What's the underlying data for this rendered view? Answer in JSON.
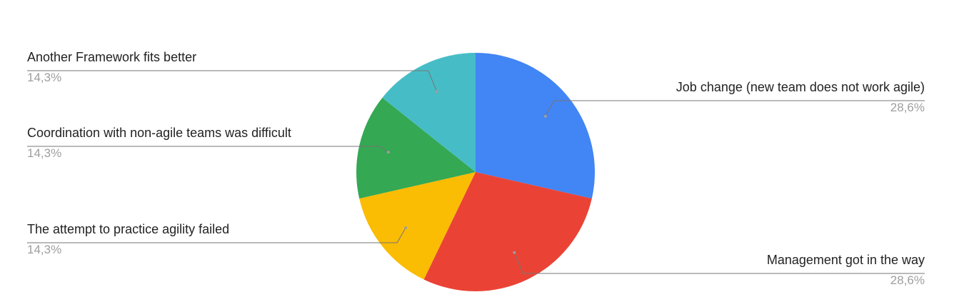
{
  "chart_data": {
    "type": "pie",
    "title": "",
    "labels_shown": "name-and-percent-outside-with-leader-lines",
    "slices": [
      {
        "label": "Job change (new team does not work agile)",
        "value": 28.6,
        "value_label": "28,6%",
        "color": "#4285f4",
        "side": "right"
      },
      {
        "label": "Management got in the way",
        "value": 28.6,
        "value_label": "28,6%",
        "color": "#ea4335",
        "side": "right"
      },
      {
        "label": "The attempt to practice agility failed",
        "value": 14.3,
        "value_label": "14,3%",
        "color": "#fbbc04",
        "side": "left"
      },
      {
        "label": "Coordination with non-agile teams was difficult",
        "value": 14.3,
        "value_label": "14,3%",
        "color": "#34a853",
        "side": "left"
      },
      {
        "label": "Another Framework fits better",
        "value": 14.3,
        "value_label": "14,3%",
        "color": "#46bdc6",
        "side": "left"
      }
    ]
  }
}
